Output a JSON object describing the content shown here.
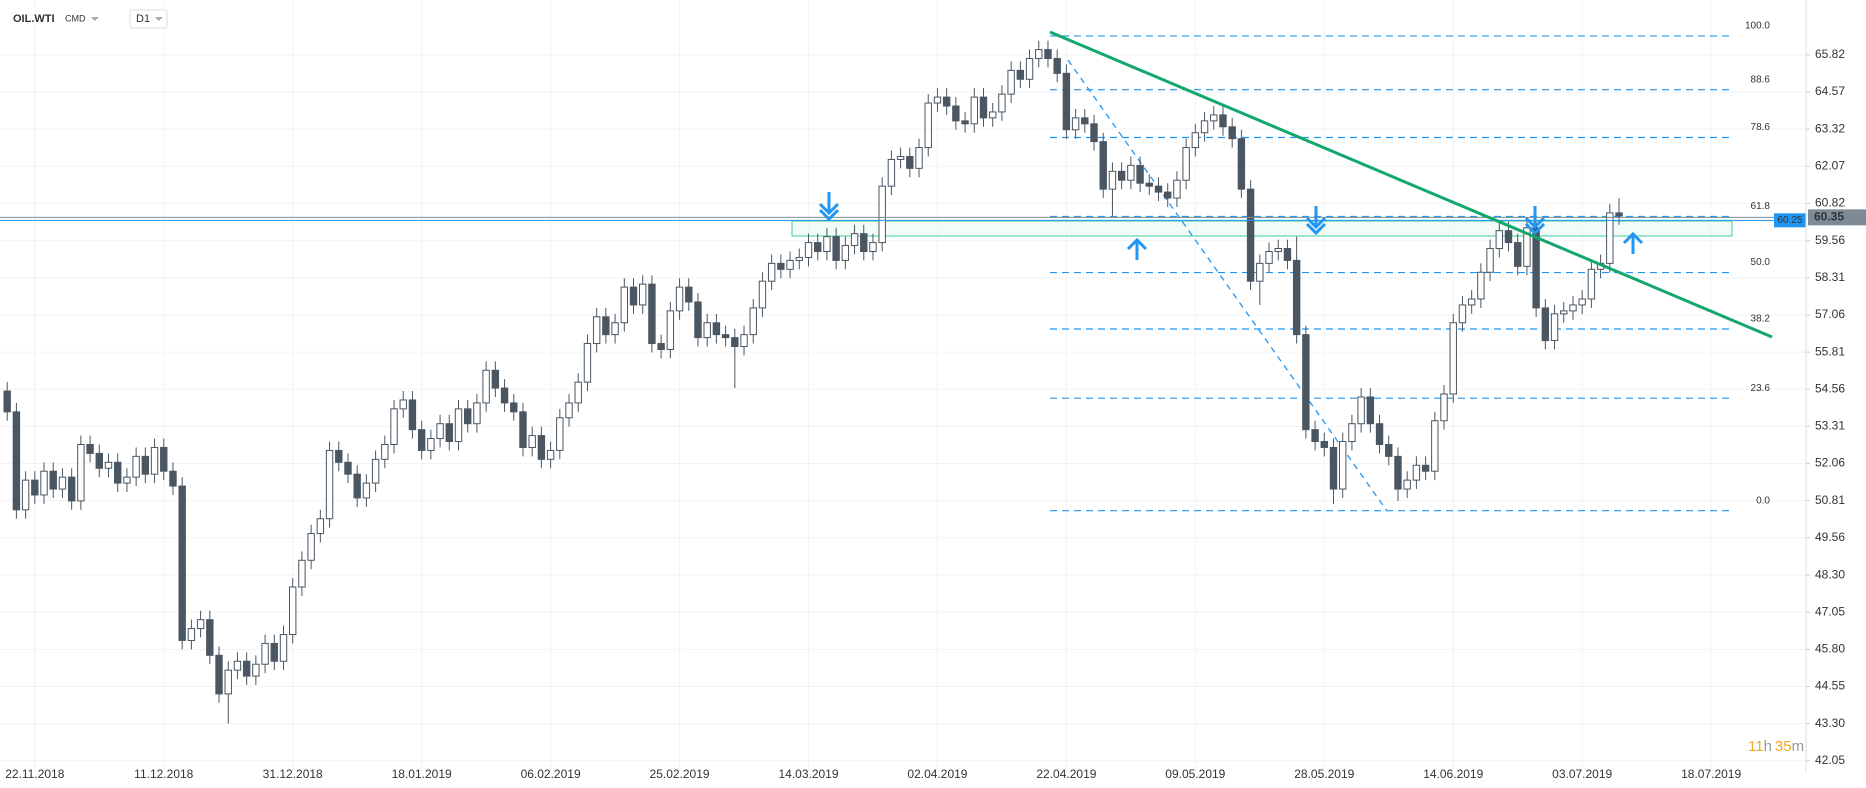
{
  "header": {
    "symbol": "OIL.WTI",
    "market": "CMD",
    "interval": "D1"
  },
  "timer": [
    "11",
    "h",
    "35",
    "m"
  ],
  "chart_data": {
    "type": "candlestick",
    "up_color": "#ffffff",
    "down_color": "#4a5661",
    "outline_color": "#4a5661",
    "grid": true,
    "ylim": [
      41.67,
      67.67
    ],
    "yticks": [
      65.82,
      64.57,
      63.32,
      62.07,
      60.82,
      59.56,
      58.31,
      57.06,
      55.81,
      54.56,
      53.31,
      52.06,
      50.81,
      49.56,
      {
        "value": 48.3,
        "label": "48.30"
      },
      47.05,
      {
        "value": 45.8,
        "label": "45.80"
      },
      44.55,
      {
        "value": 43.3,
        "label": "43.30"
      },
      42.05
    ],
    "xlim": [
      -0.78,
      195.3
    ],
    "xticks": [
      {
        "value": 3,
        "label": "22.11.2018"
      },
      {
        "value": 17,
        "label": "11.12.2018"
      },
      {
        "value": 31,
        "label": "31.12.2018"
      },
      {
        "value": 45,
        "label": "18.01.2019"
      },
      {
        "value": 59,
        "label": "06.02.2019"
      },
      {
        "value": 73,
        "label": "25.02.2019"
      },
      {
        "value": 87,
        "label": "14.03.2019"
      },
      {
        "value": 101,
        "label": "02.04.2019"
      },
      {
        "value": 115,
        "label": "22.04.2019"
      },
      {
        "value": 129,
        "label": "09.05.2019"
      },
      {
        "value": 143,
        "label": "28.05.2019"
      },
      {
        "value": 157,
        "label": "14.06.2019"
      },
      {
        "value": 171,
        "label": "03.07.2019"
      },
      {
        "value": 185,
        "label": "18.07.2019"
      }
    ],
    "open": [
      54.5,
      53.8,
      50.5,
      51.5,
      51.0,
      51.8,
      51.2,
      51.6,
      50.8,
      52.7,
      52.4,
      51.9,
      52.1,
      51.4,
      51.6,
      52.3,
      51.7,
      52.6,
      51.8,
      51.3,
      46.1,
      46.5,
      46.8,
      45.6,
      44.3,
      45.1,
      45.4,
      44.9,
      45.3,
      46.0,
      45.4,
      46.3,
      47.9,
      48.8,
      49.7,
      50.2,
      52.5,
      52.1,
      51.7,
      50.9,
      51.4,
      52.2,
      52.7,
      53.9,
      54.2,
      53.2,
      52.5,
      52.9,
      53.4,
      52.8,
      53.9,
      53.4,
      54.1,
      55.2,
      54.6,
      54.1,
      53.8,
      52.6,
      53.0,
      52.2,
      52.5,
      53.6,
      54.1,
      54.8,
      56.1,
      57.0,
      56.4,
      56.8,
      58.0,
      57.4,
      58.1,
      56.1,
      55.9,
      57.2,
      58.0,
      57.5,
      56.3,
      56.8,
      56.4,
      56.3,
      56.0,
      56.4,
      57.3,
      58.2,
      58.8,
      58.6,
      58.9,
      59.0,
      59.5,
      59.2,
      59.7,
      58.9,
      59.4,
      59.8,
      59.2,
      59.5,
      61.4,
      62.3,
      62.4,
      62.0,
      62.7,
      64.2,
      64.4,
      64.1,
      63.6,
      63.5,
      64.4,
      63.7,
      63.9,
      64.5,
      65.3,
      65.0,
      65.7,
      66.0,
      65.7,
      65.2,
      63.3,
      63.7,
      63.5,
      62.9,
      61.3,
      61.9,
      61.6,
      62.1,
      61.5,
      61.4,
      61.2,
      61.0,
      61.6,
      62.7,
      63.2,
      63.6,
      63.8,
      63.4,
      63.0,
      61.3,
      58.2,
      58.8,
      59.2,
      59.3,
      58.9,
      56.4,
      53.2,
      52.8,
      52.6,
      51.2,
      52.8,
      53.4,
      54.3,
      53.4,
      52.7,
      52.3,
      51.2,
      51.5,
      52.0,
      51.8,
      53.5,
      54.4,
      56.8,
      57.4,
      57.6,
      58.5,
      59.3,
      59.9,
      59.5,
      58.7,
      60.0,
      57.3,
      56.2,
      57.1,
      57.2,
      57.4,
      57.6,
      58.6,
      58.8,
      60.5
    ],
    "high": [
      54.8,
      54.1,
      51.8,
      51.8,
      52.1,
      52.1,
      51.9,
      51.9,
      53.0,
      53.0,
      52.7,
      52.4,
      52.4,
      51.9,
      52.6,
      52.6,
      52.9,
      52.9,
      52.1,
      51.6,
      46.8,
      47.1,
      47.1,
      45.9,
      45.4,
      45.7,
      45.7,
      45.6,
      46.3,
      46.3,
      46.6,
      48.2,
      49.1,
      50.0,
      50.5,
      52.8,
      52.8,
      52.4,
      52.0,
      51.7,
      52.5,
      53.0,
      54.2,
      54.5,
      54.5,
      53.5,
      53.2,
      53.7,
      53.7,
      54.2,
      54.2,
      54.4,
      55.5,
      55.5,
      54.9,
      54.4,
      54.1,
      53.3,
      53.3,
      52.8,
      53.9,
      54.4,
      55.1,
      56.4,
      57.3,
      57.3,
      57.1,
      58.3,
      58.3,
      58.4,
      58.4,
      56.4,
      57.5,
      58.3,
      58.3,
      57.8,
      57.1,
      57.1,
      56.7,
      56.6,
      56.7,
      57.6,
      58.5,
      59.1,
      59.1,
      59.2,
      59.3,
      59.8,
      59.8,
      60.0,
      60.0,
      59.7,
      60.1,
      60.1,
      59.8,
      61.7,
      62.6,
      62.7,
      62.7,
      63.0,
      64.5,
      64.7,
      64.7,
      64.4,
      63.9,
      64.7,
      64.7,
      64.2,
      64.8,
      65.6,
      65.6,
      66.0,
      66.3,
      66.3,
      66.0,
      65.5,
      64.0,
      64.0,
      63.8,
      63.2,
      62.2,
      62.2,
      62.4,
      62.4,
      61.8,
      61.7,
      61.5,
      61.9,
      63.0,
      63.5,
      63.9,
      64.1,
      64.1,
      63.7,
      63.3,
      61.6,
      59.1,
      59.5,
      59.6,
      59.6,
      59.7,
      56.7,
      53.5,
      53.1,
      52.9,
      53.1,
      53.7,
      54.6,
      54.6,
      53.7,
      53.0,
      52.6,
      51.8,
      52.3,
      52.3,
      53.8,
      54.7,
      57.1,
      57.7,
      57.9,
      58.8,
      59.6,
      60.2,
      60.2,
      59.8,
      60.3,
      60.3,
      57.6,
      57.4,
      57.5,
      57.7,
      57.9,
      58.9,
      59.1,
      60.8,
      61.0
    ],
    "low": [
      53.5,
      50.2,
      50.2,
      50.7,
      50.7,
      50.9,
      50.9,
      50.5,
      50.5,
      52.1,
      51.6,
      51.6,
      51.1,
      51.1,
      51.3,
      51.4,
      51.4,
      51.5,
      51.0,
      45.8,
      45.8,
      46.2,
      45.3,
      44.0,
      43.3,
      44.8,
      44.6,
      44.6,
      45.0,
      45.1,
      45.1,
      46.0,
      47.6,
      48.5,
      49.4,
      49.9,
      51.8,
      51.4,
      50.6,
      50.6,
      51.1,
      51.9,
      52.4,
      53.6,
      52.9,
      52.2,
      52.2,
      52.6,
      52.5,
      52.5,
      53.1,
      53.1,
      53.8,
      54.3,
      53.8,
      53.5,
      52.3,
      52.3,
      51.9,
      51.9,
      52.2,
      53.3,
      53.8,
      54.5,
      55.8,
      56.1,
      56.1,
      56.5,
      57.1,
      57.1,
      55.8,
      55.6,
      55.6,
      56.9,
      57.2,
      56.0,
      56.0,
      56.1,
      56.0,
      54.6,
      55.7,
      56.1,
      57.0,
      57.9,
      58.3,
      58.3,
      58.6,
      58.7,
      58.9,
      58.9,
      58.6,
      58.6,
      59.1,
      58.9,
      58.9,
      59.2,
      61.1,
      62.0,
      61.7,
      61.7,
      62.4,
      63.9,
      63.8,
      63.3,
      63.2,
      63.2,
      63.4,
      63.4,
      63.6,
      64.2,
      64.7,
      64.7,
      65.4,
      65.4,
      64.9,
      63.0,
      63.0,
      63.2,
      62.6,
      61.0,
      60.4,
      61.3,
      61.3,
      61.2,
      61.1,
      60.9,
      60.7,
      60.7,
      61.3,
      62.4,
      62.9,
      63.3,
      63.1,
      62.7,
      61.0,
      57.9,
      57.4,
      58.5,
      58.9,
      58.6,
      56.1,
      52.9,
      52.5,
      52.3,
      50.7,
      50.9,
      52.5,
      53.1,
      53.1,
      52.4,
      52.0,
      50.8,
      50.9,
      51.2,
      51.5,
      51.5,
      53.2,
      54.1,
      56.5,
      57.1,
      57.3,
      58.2,
      59.0,
      59.2,
      58.4,
      58.4,
      57.0,
      55.9,
      55.9,
      56.8,
      56.9,
      57.1,
      57.3,
      58.3,
      58.5,
      60.1
    ],
    "close": [
      53.8,
      50.5,
      51.5,
      51.0,
      51.8,
      51.2,
      51.6,
      50.8,
      52.7,
      52.4,
      51.9,
      52.1,
      51.4,
      51.6,
      52.3,
      51.7,
      52.6,
      51.8,
      51.3,
      46.1,
      46.5,
      46.8,
      45.6,
      44.3,
      45.1,
      45.4,
      44.9,
      45.3,
      46.0,
      45.4,
      46.3,
      47.9,
      48.8,
      49.7,
      50.2,
      52.5,
      52.1,
      51.7,
      50.9,
      51.4,
      52.2,
      52.7,
      53.9,
      54.2,
      53.2,
      52.5,
      52.9,
      53.4,
      52.8,
      53.9,
      53.4,
      54.1,
      55.2,
      54.6,
      54.1,
      53.8,
      52.6,
      53.0,
      52.2,
      52.5,
      53.6,
      54.1,
      54.8,
      56.1,
      57.0,
      56.4,
      56.8,
      58.0,
      57.4,
      58.1,
      56.1,
      55.9,
      57.2,
      58.0,
      57.5,
      56.3,
      56.8,
      56.4,
      56.3,
      56.0,
      56.4,
      57.3,
      58.2,
      58.8,
      58.6,
      58.9,
      59.0,
      59.5,
      59.2,
      59.7,
      58.9,
      59.4,
      59.8,
      59.2,
      59.5,
      61.4,
      62.3,
      62.4,
      62.0,
      62.7,
      64.2,
      64.4,
      64.1,
      63.6,
      63.5,
      64.4,
      63.7,
      63.9,
      64.5,
      65.3,
      65.0,
      65.7,
      66.0,
      65.7,
      65.2,
      63.3,
      63.7,
      63.5,
      62.9,
      61.3,
      61.9,
      61.6,
      62.1,
      61.5,
      61.4,
      61.2,
      61.0,
      61.6,
      62.7,
      63.2,
      63.6,
      63.8,
      63.4,
      63.0,
      61.3,
      58.2,
      58.8,
      59.2,
      59.3,
      58.9,
      56.4,
      53.2,
      52.8,
      52.6,
      51.2,
      52.8,
      53.4,
      54.3,
      53.4,
      52.7,
      52.3,
      51.2,
      51.5,
      52.0,
      51.8,
      53.5,
      54.4,
      56.8,
      57.4,
      57.6,
      58.5,
      59.3,
      59.9,
      59.5,
      58.7,
      60.0,
      57.3,
      56.2,
      57.1,
      57.2,
      57.4,
      57.6,
      58.6,
      58.8,
      60.5,
      60.4
    ],
    "fibonacci": {
      "color": "#2196f3",
      "labels": [
        "100.0",
        "88.6",
        "78.6",
        "61.8",
        "50.0",
        "38.2",
        "23.6",
        "0.0"
      ],
      "prices": [
        66.46,
        64.65,
        63.04,
        60.38,
        58.49,
        56.59,
        54.26,
        50.47
      ]
    },
    "price_tags": [
      {
        "value": 60.25,
        "color": "#2196f3"
      },
      {
        "value": 60.35,
        "color": "#7d8b96"
      }
    ]
  }
}
